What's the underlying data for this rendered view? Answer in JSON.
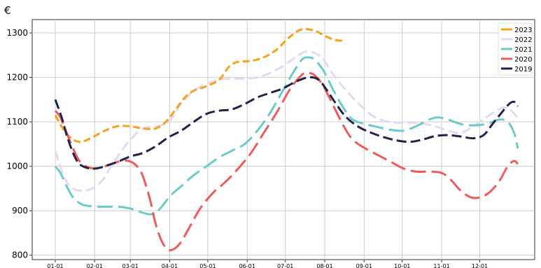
{
  "chart_data": {
    "type": "line",
    "ylabel": "€",
    "ylim": [
      790,
      1330
    ],
    "xlim": [
      1,
      365
    ],
    "yticks": [
      800,
      900,
      1000,
      1100,
      1200,
      1300
    ],
    "xticks": [
      {
        "label": "01-01",
        "day": 1
      },
      {
        "label": "02-01",
        "day": 32
      },
      {
        "label": "03-01",
        "day": 60
      },
      {
        "label": "04-01",
        "day": 91
      },
      {
        "label": "05-01",
        "day": 121
      },
      {
        "label": "06-01",
        "day": 152
      },
      {
        "label": "07-01",
        "day": 182
      },
      {
        "label": "08-01",
        "day": 213
      },
      {
        "label": "09-01",
        "day": 244
      },
      {
        "label": "10-01",
        "day": 274
      },
      {
        "label": "11-01",
        "day": 305
      },
      {
        "label": "12-01",
        "day": 335
      }
    ],
    "grid": true,
    "legend_position": "top-right",
    "series": [
      {
        "name": "2023",
        "color": "#f5a31a",
        "dash": "short",
        "points": [
          [
            1,
            1115
          ],
          [
            8,
            1080
          ],
          [
            15,
            1060
          ],
          [
            22,
            1055
          ],
          [
            30,
            1065
          ],
          [
            40,
            1080
          ],
          [
            50,
            1090
          ],
          [
            60,
            1090
          ],
          [
            70,
            1085
          ],
          [
            80,
            1085
          ],
          [
            88,
            1100
          ],
          [
            95,
            1125
          ],
          [
            103,
            1155
          ],
          [
            110,
            1170
          ],
          [
            120,
            1180
          ],
          [
            130,
            1195
          ],
          [
            138,
            1225
          ],
          [
            145,
            1235
          ],
          [
            155,
            1237
          ],
          [
            165,
            1245
          ],
          [
            175,
            1262
          ],
          [
            185,
            1290
          ],
          [
            195,
            1308
          ],
          [
            205,
            1305
          ],
          [
            212,
            1295
          ],
          [
            220,
            1285
          ],
          [
            228,
            1282
          ]
        ]
      },
      {
        "name": "2022",
        "color": "#e4d8f5",
        "dash": "medium",
        "points": [
          [
            1,
            1035
          ],
          [
            8,
            975
          ],
          [
            15,
            950
          ],
          [
            22,
            945
          ],
          [
            30,
            950
          ],
          [
            38,
            968
          ],
          [
            45,
            1000
          ],
          [
            52,
            1030
          ],
          [
            60,
            1060
          ],
          [
            70,
            1085
          ],
          [
            80,
            1090
          ],
          [
            90,
            1100
          ],
          [
            100,
            1140
          ],
          [
            110,
            1170
          ],
          [
            120,
            1185
          ],
          [
            130,
            1195
          ],
          [
            140,
            1197
          ],
          [
            150,
            1197
          ],
          [
            160,
            1200
          ],
          [
            170,
            1210
          ],
          [
            180,
            1225
          ],
          [
            190,
            1245
          ],
          [
            198,
            1258
          ],
          [
            205,
            1255
          ],
          [
            212,
            1240
          ],
          [
            220,
            1205
          ],
          [
            230,
            1170
          ],
          [
            240,
            1140
          ],
          [
            250,
            1115
          ],
          [
            260,
            1102
          ],
          [
            270,
            1098
          ],
          [
            280,
            1098
          ],
          [
            290,
            1096
          ],
          [
            300,
            1090
          ],
          [
            310,
            1080
          ],
          [
            320,
            1075
          ],
          [
            330,
            1090
          ],
          [
            340,
            1110
          ],
          [
            350,
            1128
          ],
          [
            355,
            1132
          ],
          [
            360,
            1125
          ],
          [
            365,
            1108
          ]
        ]
      },
      {
        "name": "2021",
        "color": "#6bcaca",
        "dash": "long",
        "points": [
          [
            1,
            1000
          ],
          [
            5,
            985
          ],
          [
            10,
            955
          ],
          [
            15,
            930
          ],
          [
            22,
            914
          ],
          [
            30,
            910
          ],
          [
            40,
            909
          ],
          [
            50,
            909
          ],
          [
            60,
            905
          ],
          [
            68,
            897
          ],
          [
            75,
            892
          ],
          [
            80,
            895
          ],
          [
            85,
            910
          ],
          [
            92,
            935
          ],
          [
            100,
            955
          ],
          [
            110,
            980
          ],
          [
            120,
            1000
          ],
          [
            130,
            1020
          ],
          [
            140,
            1035
          ],
          [
            150,
            1050
          ],
          [
            160,
            1080
          ],
          [
            170,
            1120
          ],
          [
            180,
            1170
          ],
          [
            188,
            1210
          ],
          [
            195,
            1240
          ],
          [
            200,
            1245
          ],
          [
            205,
            1240
          ],
          [
            212,
            1215
          ],
          [
            220,
            1170
          ],
          [
            228,
            1130
          ],
          [
            235,
            1105
          ],
          [
            245,
            1095
          ],
          [
            255,
            1088
          ],
          [
            265,
            1082
          ],
          [
            275,
            1080
          ],
          [
            285,
            1090
          ],
          [
            295,
            1105
          ],
          [
            302,
            1110
          ],
          [
            310,
            1105
          ],
          [
            320,
            1095
          ],
          [
            330,
            1092
          ],
          [
            340,
            1095
          ],
          [
            350,
            1105
          ],
          [
            357,
            1100
          ],
          [
            362,
            1075
          ],
          [
            365,
            1040
          ]
        ]
      },
      {
        "name": "2020",
        "color": "#f05a5a",
        "dash": "long",
        "points": [
          [
            1,
            1125
          ],
          [
            5,
            1110
          ],
          [
            10,
            1075
          ],
          [
            15,
            1040
          ],
          [
            20,
            1012
          ],
          [
            25,
            1000
          ],
          [
            32,
            995
          ],
          [
            40,
            1000
          ],
          [
            48,
            1008
          ],
          [
            55,
            1013
          ],
          [
            62,
            1008
          ],
          [
            68,
            990
          ],
          [
            72,
            960
          ],
          [
            76,
            920
          ],
          [
            80,
            870
          ],
          [
            85,
            830
          ],
          [
            90,
            812
          ],
          [
            95,
            815
          ],
          [
            100,
            830
          ],
          [
            108,
            870
          ],
          [
            115,
            905
          ],
          [
            125,
            940
          ],
          [
            135,
            965
          ],
          [
            145,
            995
          ],
          [
            155,
            1030
          ],
          [
            165,
            1075
          ],
          [
            175,
            1120
          ],
          [
            185,
            1170
          ],
          [
            193,
            1200
          ],
          [
            198,
            1210
          ],
          [
            205,
            1205
          ],
          [
            212,
            1180
          ],
          [
            220,
            1135
          ],
          [
            228,
            1090
          ],
          [
            235,
            1060
          ],
          [
            245,
            1040
          ],
          [
            255,
            1025
          ],
          [
            265,
            1010
          ],
          [
            275,
            995
          ],
          [
            285,
            988
          ],
          [
            295,
            988
          ],
          [
            305,
            985
          ],
          [
            312,
            970
          ],
          [
            320,
            945
          ],
          [
            328,
            930
          ],
          [
            335,
            930
          ],
          [
            342,
            940
          ],
          [
            350,
            965
          ],
          [
            357,
            1000
          ],
          [
            362,
            1012
          ],
          [
            365,
            1005
          ]
        ]
      },
      {
        "name": "2019",
        "color": "#23224a",
        "dash": "medium",
        "points": [
          [
            1,
            1150
          ],
          [
            6,
            1110
          ],
          [
            10,
            1070
          ],
          [
            15,
            1030
          ],
          [
            20,
            1005
          ],
          [
            28,
            995
          ],
          [
            35,
            996
          ],
          [
            42,
            1002
          ],
          [
            50,
            1010
          ],
          [
            60,
            1022
          ],
          [
            70,
            1030
          ],
          [
            80,
            1045
          ],
          [
            90,
            1065
          ],
          [
            100,
            1080
          ],
          [
            110,
            1100
          ],
          [
            120,
            1118
          ],
          [
            130,
            1125
          ],
          [
            140,
            1128
          ],
          [
            150,
            1140
          ],
          [
            160,
            1155
          ],
          [
            170,
            1165
          ],
          [
            180,
            1175
          ],
          [
            190,
            1190
          ],
          [
            200,
            1200
          ],
          [
            208,
            1195
          ],
          [
            215,
            1170
          ],
          [
            222,
            1140
          ],
          [
            230,
            1110
          ],
          [
            240,
            1088
          ],
          [
            250,
            1075
          ],
          [
            260,
            1065
          ],
          [
            270,
            1058
          ],
          [
            280,
            1055
          ],
          [
            290,
            1060
          ],
          [
            300,
            1068
          ],
          [
            310,
            1070
          ],
          [
            320,
            1067
          ],
          [
            330,
            1063
          ],
          [
            338,
            1070
          ],
          [
            345,
            1095
          ],
          [
            352,
            1120
          ],
          [
            358,
            1140
          ],
          [
            362,
            1145
          ],
          [
            365,
            1135
          ]
        ]
      }
    ]
  }
}
